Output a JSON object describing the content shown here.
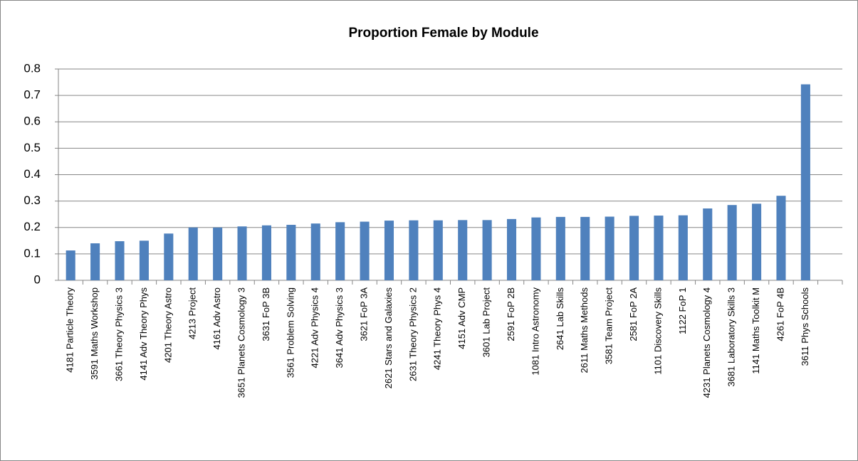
{
  "chart_data": {
    "type": "bar",
    "title": "Proportion Female by Module",
    "categories": [
      "4181 Particle Theory",
      "3591 Maths Workshop",
      "3661 Theory Physics 3",
      "4141 Adv Theory Phys",
      "4201 Theory Astro",
      "4213 Project",
      "4161 Adv Astro",
      "3651 Planets Cosmology 3",
      "3631 FoP 3B",
      "3561 Problem Solving",
      "4221 Adv Physics 4",
      "3641 Adv Physics 3",
      "3621 FoP 3A",
      "2621 Stars and Galaxies",
      "2631 Theory Physics 2",
      "4241 Theory Phys 4",
      "4151 Adv CMP",
      "3601 Lab Project",
      "2591 FoP 2B",
      "1081 Intro Astronomy",
      "2641 Lab Skills",
      "2611 Maths Methods",
      "3581 Team Project",
      "2581 FoP 2A",
      "1101 Discovery Skills",
      "1122 FoP 1",
      "4231 Planets Cosmology 4",
      "3681 Laboratory Skills 3",
      "1141 Maths Toolkit M",
      "4261 FoP 4B",
      "3611 Phys Schools",
      null
    ],
    "values": [
      0.113,
      0.14,
      0.148,
      0.15,
      0.177,
      0.2,
      0.2,
      0.204,
      0.208,
      0.21,
      0.215,
      0.22,
      0.222,
      0.226,
      0.227,
      0.227,
      0.228,
      0.228,
      0.232,
      0.238,
      0.24,
      0.24,
      0.241,
      0.244,
      0.245,
      0.246,
      0.272,
      0.285,
      0.29,
      0.32,
      0.742,
      null
    ],
    "color": "#4f81bd",
    "ylim": [
      0,
      0.8
    ],
    "yticks": [
      0,
      0.1,
      0.2,
      0.3,
      0.4,
      0.5,
      0.6,
      0.7,
      0.8
    ],
    "grid": true
  }
}
